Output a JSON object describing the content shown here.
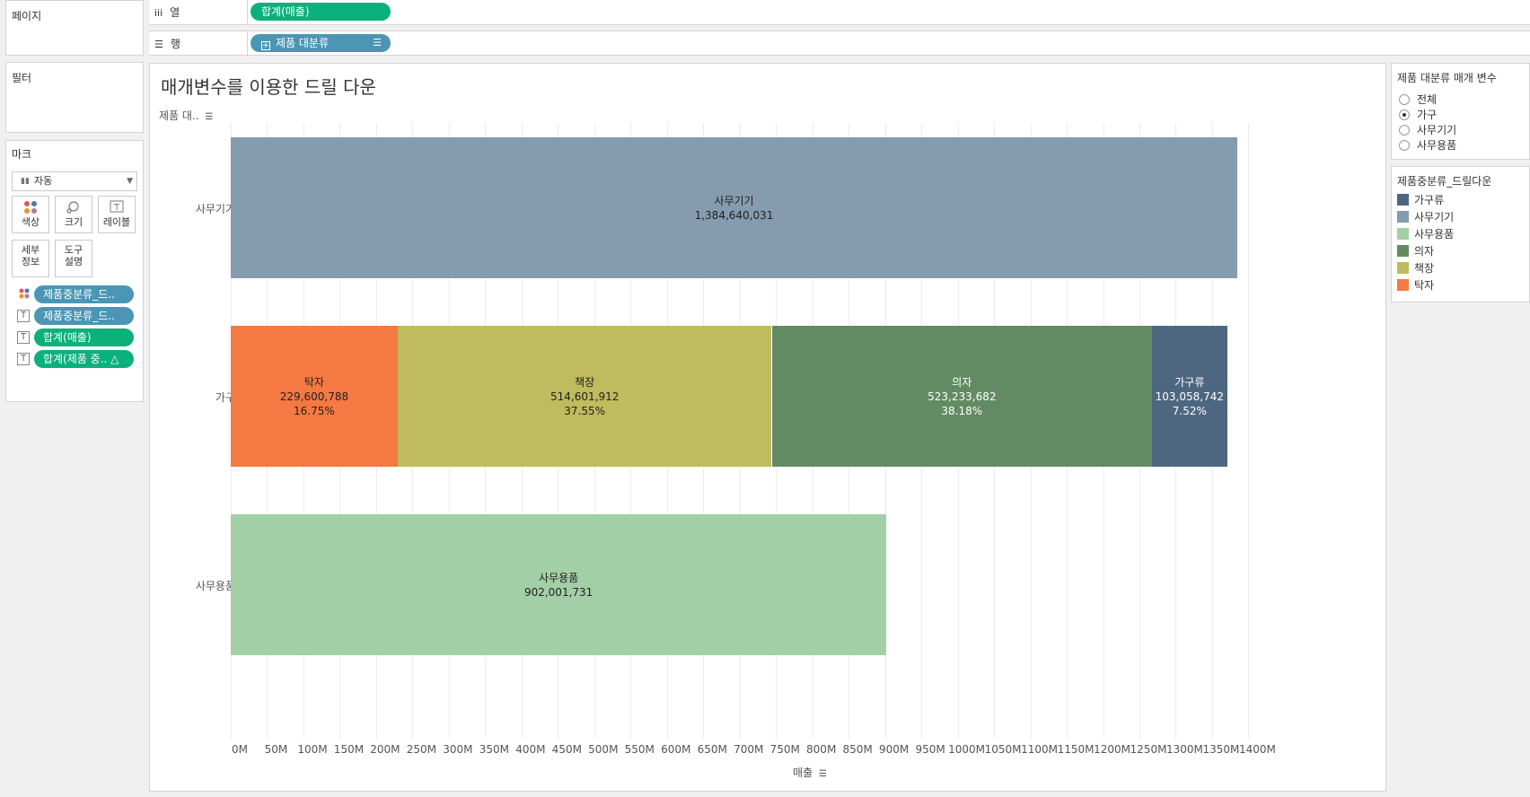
{
  "left": {
    "pages_title": "페이지",
    "filters_title": "필터",
    "marks_title": "마크",
    "mark_type": "자동",
    "buttons": {
      "color": "색상",
      "size": "크기",
      "label": "레이블",
      "detail_1": "세부",
      "detail_2": "정보",
      "tooltip_1": "도구",
      "tooltip_2": "설명"
    },
    "mark_pills": [
      "제품중분류_드..",
      "제품중분류_드..",
      "합계(매출)",
      "합계(제품 중.. △"
    ]
  },
  "shelves": {
    "columns_label": "열",
    "columns_pill": "합계(매출)",
    "rows_label": "행",
    "rows_pill": "제품 대분류"
  },
  "view": {
    "title": "매개변수를 이용한 드릴 다운",
    "row_header": "제품 대..",
    "axis_title": "매출"
  },
  "chart_data": {
    "type": "bar",
    "orientation": "horizontal",
    "stacked": true,
    "categories": [
      "사무기기",
      "가구",
      "사무용품"
    ],
    "xlabel": "매출",
    "xlim": [
      0,
      1450000000
    ],
    "ticks": [
      "0M",
      "50M",
      "100M",
      "150M",
      "200M",
      "250M",
      "300M",
      "350M",
      "400M",
      "450M",
      "500M",
      "550M",
      "600M",
      "650M",
      "700M",
      "750M",
      "800M",
      "850M",
      "900M",
      "950M",
      "1000M",
      "1050M",
      "1100M",
      "1150M",
      "1200M",
      "1250M",
      "1300M",
      "1350M",
      "1400M"
    ],
    "grid": true,
    "segments": [
      {
        "category": "사무기기",
        "name": "사무기기",
        "value": 1384640031,
        "label": "1,384,640,031",
        "pct": "",
        "color": "#849bb0",
        "text_color": "#222222"
      },
      {
        "category": "가구",
        "name": "탁자",
        "value": 229600788,
        "label": "229,600,788",
        "pct": "16.75%",
        "color": "#f47942",
        "text_color": "#222222"
      },
      {
        "category": "가구",
        "name": "책장",
        "value": 514601912,
        "label": "514,601,912",
        "pct": "37.55%",
        "color": "#bfbb5e",
        "text_color": "#222222"
      },
      {
        "category": "가구",
        "name": "의자",
        "value": 523233682,
        "label": "523,233,682",
        "pct": "38.18%",
        "color": "#638b63",
        "text_color": "#ffffff"
      },
      {
        "category": "가구",
        "name": "가구류",
        "value": 103058742,
        "label": "103,058,742",
        "pct": "7.52%",
        "color": "#4e6780",
        "text_color": "#ffffff"
      },
      {
        "category": "사무용품",
        "name": "사무용품",
        "value": 902001731,
        "label": "902,001,731",
        "pct": "",
        "color": "#a3cfa6",
        "text_color": "#222222"
      }
    ]
  },
  "parameter": {
    "title": "제품 대분류 매개 변수",
    "options": [
      "전체",
      "가구",
      "사무기기",
      "사무용품"
    ],
    "selected": "가구"
  },
  "legend": {
    "title": "제품중분류_드릴다운",
    "items": [
      {
        "label": "가구류",
        "color": "#4e6780"
      },
      {
        "label": "사무기기",
        "color": "#849bb0"
      },
      {
        "label": "사무용품",
        "color": "#a3cfa6"
      },
      {
        "label": "의자",
        "color": "#638b63"
      },
      {
        "label": "책장",
        "color": "#bfbb5e"
      },
      {
        "label": "탁자",
        "color": "#f47942"
      }
    ]
  }
}
